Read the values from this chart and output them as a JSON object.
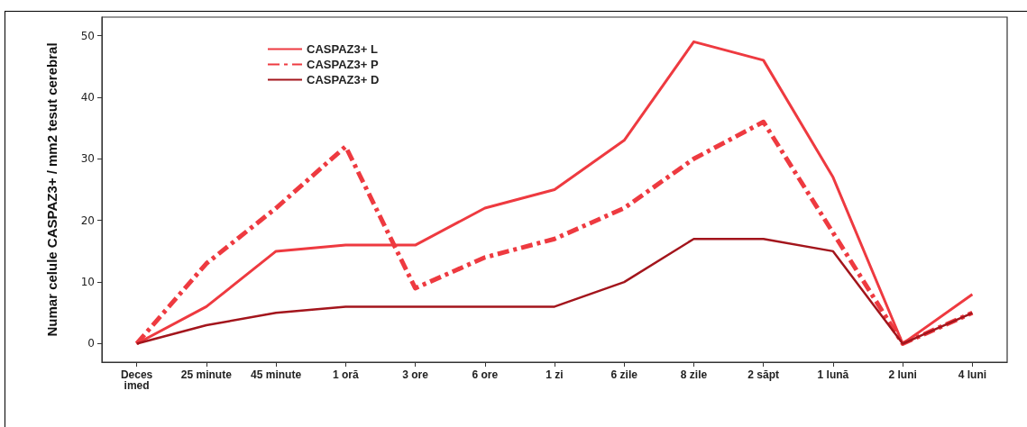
{
  "chart_data": {
    "type": "line",
    "ylabel": "Numar celule CASPAZ3+ / mm2 tesut cerebral",
    "categories": [
      "Deces\nimed",
      "25 minute",
      "45 minute",
      "1 oră",
      "3 ore",
      "6 ore",
      "1 zi",
      "6 zile",
      "8 zile",
      "2 săpt",
      "1 lună",
      "2 luni",
      "4 luni"
    ],
    "series": [
      {
        "name": "CASPAZ3+ L",
        "color": "#ee3a40",
        "line_style": "solid",
        "values": [
          0,
          6,
          15,
          16,
          16,
          22,
          25,
          33,
          49,
          46,
          27,
          0,
          8
        ]
      },
      {
        "name": "CASPAZ3+ P",
        "color": "#ee3a40",
        "line_style": "dashed",
        "values": [
          0,
          13,
          22,
          32,
          9,
          14,
          17,
          22,
          30,
          36,
          18,
          0,
          5
        ]
      },
      {
        "name": "CASPAZ3+ D",
        "color": "#a3151c",
        "line_style": "solid",
        "values": [
          0,
          3,
          5,
          6,
          6,
          6,
          6,
          10,
          17,
          17,
          15,
          0,
          5
        ]
      }
    ],
    "ylim": [
      -3,
      53
    ],
    "yticks": [
      0,
      10,
      20,
      30,
      40,
      50
    ],
    "grid": false,
    "legend": "top left",
    "marker": "none"
  }
}
